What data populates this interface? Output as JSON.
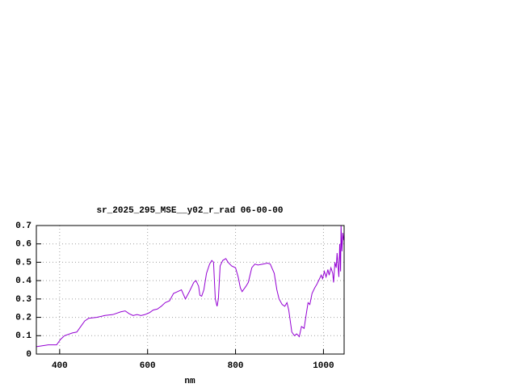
{
  "chart_data": {
    "type": "line",
    "title": "sr_2025_295_MSE__y02_r_rad 06-00-00",
    "x_label": "nm",
    "x": [
      347,
      374,
      393,
      402,
      411,
      429,
      439,
      448,
      457,
      466,
      484,
      503,
      521,
      539,
      549,
      558,
      567,
      576,
      585,
      594,
      604,
      613,
      622,
      631,
      640,
      650,
      659,
      668,
      677,
      686,
      695,
      705,
      710,
      716,
      719,
      723,
      728,
      734,
      741,
      746,
      750,
      754,
      758,
      761,
      765,
      771,
      778,
      783,
      791,
      800,
      806,
      811,
      815,
      824,
      829,
      837,
      844,
      851,
      862,
      873,
      879,
      888,
      894,
      899,
      906,
      912,
      917,
      921,
      928,
      934,
      939,
      945,
      950,
      956,
      961,
      965,
      969,
      974,
      980,
      985,
      991,
      995,
      998,
      1002,
      1006,
      1010,
      1013,
      1017,
      1021,
      1023,
      1026,
      1029,
      1031,
      1035,
      1037,
      1039,
      1040,
      1042,
      1044,
      1046
    ],
    "series": [
      {
        "color": "#9400d3",
        "values": [
          0.04,
          0.05,
          0.05,
          0.08,
          0.1,
          0.115,
          0.12,
          0.15,
          0.18,
          0.195,
          0.2,
          0.21,
          0.215,
          0.23,
          0.235,
          0.22,
          0.21,
          0.215,
          0.21,
          0.215,
          0.225,
          0.24,
          0.245,
          0.26,
          0.28,
          0.29,
          0.33,
          0.34,
          0.35,
          0.3,
          0.34,
          0.39,
          0.4,
          0.37,
          0.32,
          0.315,
          0.35,
          0.44,
          0.49,
          0.51,
          0.5,
          0.3,
          0.26,
          0.3,
          0.48,
          0.51,
          0.52,
          0.5,
          0.48,
          0.47,
          0.42,
          0.36,
          0.34,
          0.37,
          0.39,
          0.47,
          0.49,
          0.485,
          0.49,
          0.495,
          0.49,
          0.44,
          0.35,
          0.3,
          0.27,
          0.26,
          0.28,
          0.24,
          0.12,
          0.1,
          0.11,
          0.095,
          0.15,
          0.14,
          0.22,
          0.28,
          0.27,
          0.33,
          0.36,
          0.38,
          0.41,
          0.43,
          0.41,
          0.45,
          0.42,
          0.46,
          0.43,
          0.47,
          0.44,
          0.39,
          0.5,
          0.47,
          0.55,
          0.42,
          0.6,
          0.45,
          0.7,
          0.56,
          0.66,
          0.62
        ]
      }
    ],
    "xlim": [
      347,
      1047
    ],
    "xticks": [
      400,
      600,
      800,
      1000
    ],
    "ylim": [
      0,
      0.7
    ],
    "yticks": [
      0,
      0.1,
      0.2,
      0.3,
      0.4,
      0.5,
      0.6,
      0.7
    ],
    "grid": true
  }
}
